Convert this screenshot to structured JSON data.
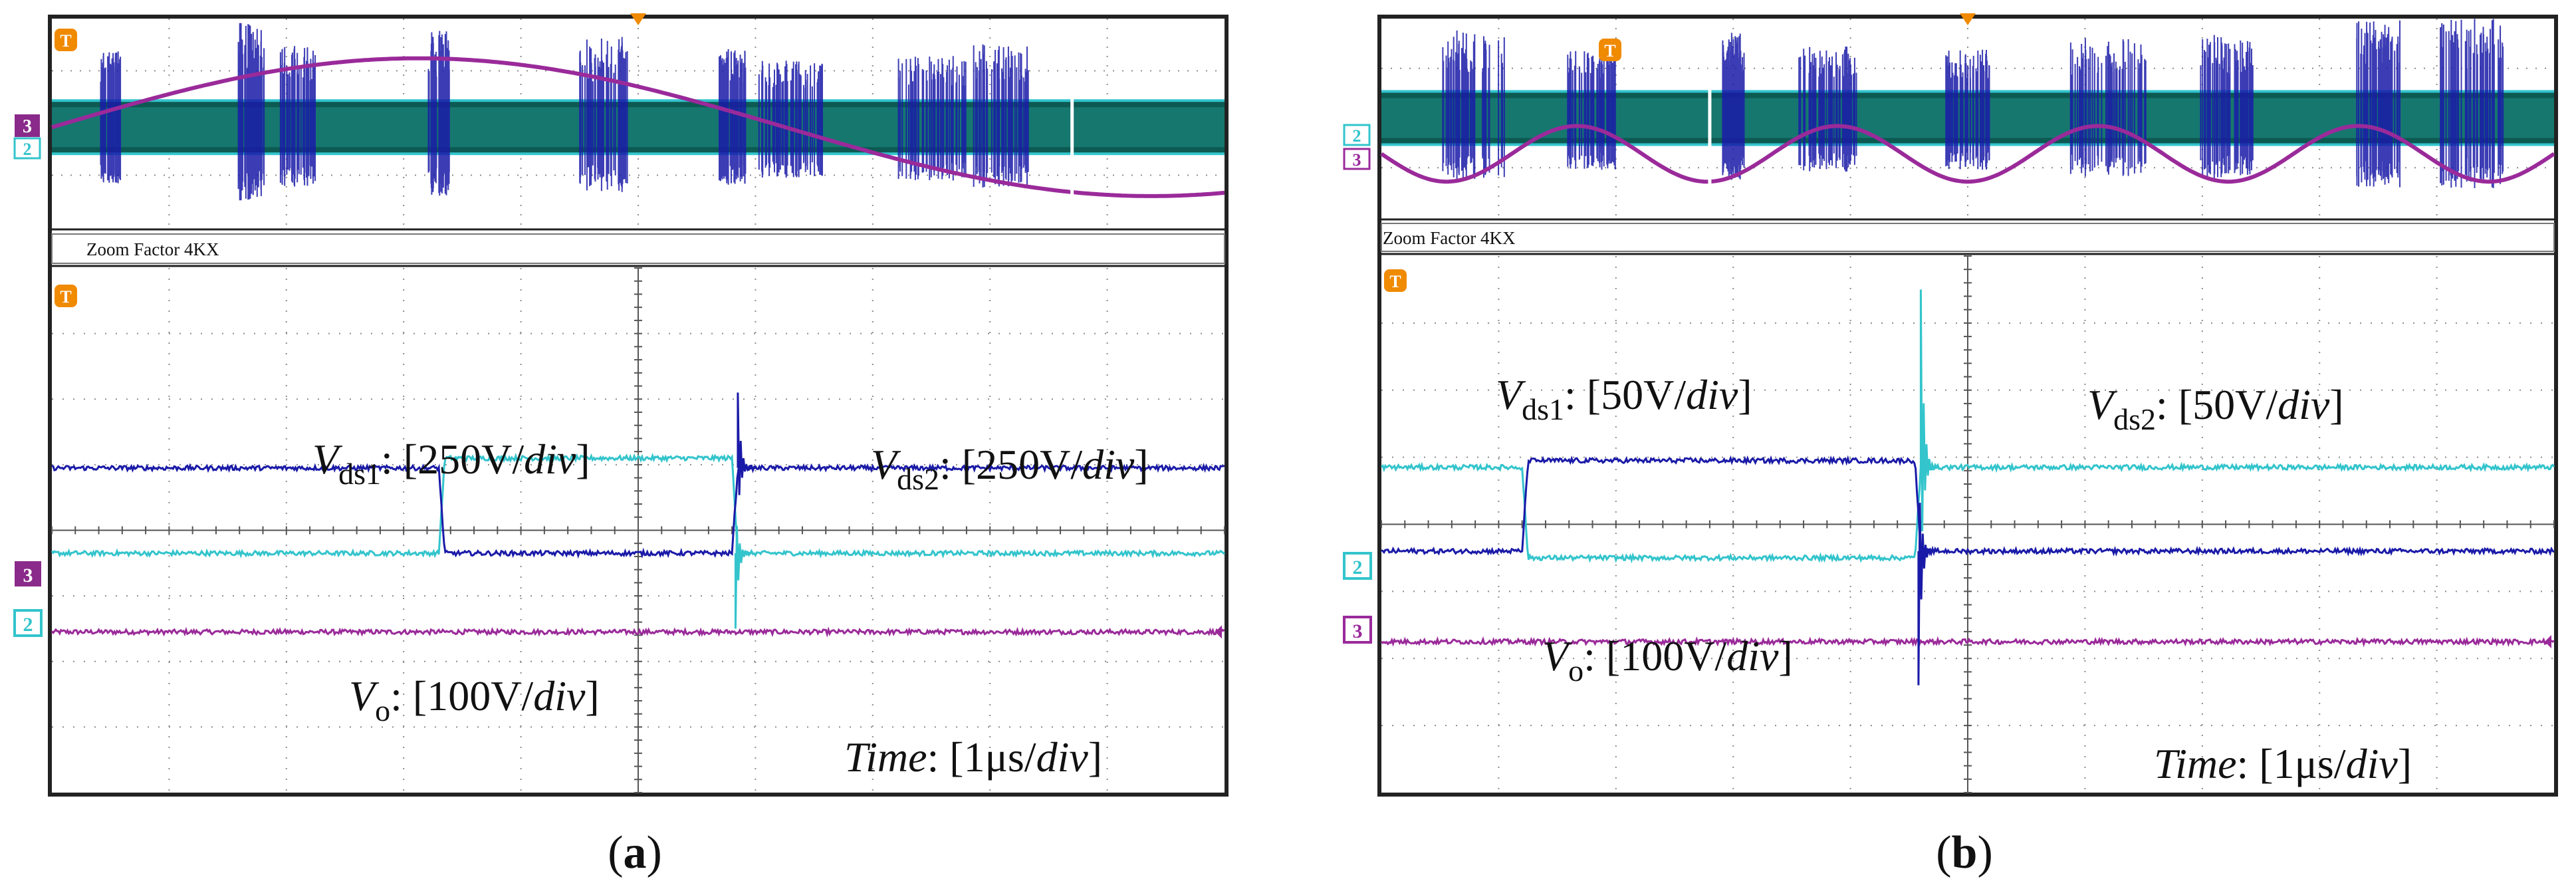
{
  "colors": {
    "ch1": "#1a1aa8",
    "ch2": "#33c4cc",
    "ch3": "#9a2a9a",
    "trigger": "#f08a00",
    "grid": "#8c8c8c",
    "frame": "#222222",
    "ov_band": "#0c5a52"
  },
  "chart_data": [
    {
      "type": "line",
      "panel": "a",
      "caption": "a",
      "zoom_label": "Zoom Factor  4KX",
      "trigger_marker": "T",
      "channel_markers": [
        "3",
        "2"
      ],
      "labels": {
        "vds1": {
          "sym": "V",
          "sub": "ds1",
          "scale": "250V",
          "unit": "div"
        },
        "vds2": {
          "sym": "V",
          "sub": "ds2",
          "scale": "250V",
          "unit": "div"
        },
        "vo": {
          "sym": "V",
          "sub": "o",
          "scale": "100V",
          "unit": "div"
        },
        "time": {
          "name": "Time",
          "scale": "1μs",
          "unit": "div"
        }
      },
      "xlim": [
        0,
        10
      ],
      "ylim": [
        -4,
        4
      ],
      "x_divisions": 10,
      "y_divisions": 8,
      "series": [
        {
          "name": "Vds1",
          "channel": 1,
          "levels": [
            [
              0,
              0.95
            ],
            [
              3.3,
              0.95
            ],
            [
              3.35,
              -0.35
            ],
            [
              5.8,
              -0.35
            ],
            [
              5.85,
              0.95
            ],
            [
              10,
              0.95
            ]
          ],
          "spikes": [
            [
              5.85,
              2.1
            ]
          ]
        },
        {
          "name": "Vds2",
          "channel": 2,
          "levels": [
            [
              0,
              -0.35
            ],
            [
              3.3,
              -0.35
            ],
            [
              3.35,
              1.1
            ],
            [
              5.8,
              1.1
            ],
            [
              5.85,
              -0.35
            ],
            [
              10,
              -0.35
            ]
          ],
          "spikes": [
            [
              5.83,
              -1.5
            ]
          ]
        },
        {
          "name": "Vo",
          "channel": 3,
          "levels": [
            [
              0,
              -1.55
            ],
            [
              10,
              -1.55
            ]
          ],
          "spikes": []
        }
      ],
      "overview": {
        "sine_cycles": 0.8,
        "sine_phase": 3.14,
        "bursts": [
          0.05,
          0.17,
          0.21,
          0.33,
          0.47,
          0.58,
          0.63,
          0.75,
          0.81
        ],
        "cursor_at": 0.87,
        "trigger_at": 0.5
      }
    },
    {
      "type": "line",
      "panel": "b",
      "caption": "b",
      "zoom_label": "Zoom Factor  4KX",
      "trigger_marker": "T",
      "channel_markers": [
        "2",
        "3"
      ],
      "labels": {
        "vds1": {
          "sym": "V",
          "sub": "ds1",
          "scale": "50V",
          "unit": "div"
        },
        "vds2": {
          "sym": "V",
          "sub": "ds2",
          "scale": "50V",
          "unit": "div"
        },
        "vo": {
          "sym": "V",
          "sub": "o",
          "scale": "100V",
          "unit": "div"
        },
        "time": {
          "name": "Time",
          "scale": "1μs",
          "unit": "div"
        }
      },
      "xlim": [
        0,
        10
      ],
      "ylim": [
        -4,
        4
      ],
      "x_divisions": 10,
      "y_divisions": 8,
      "series": [
        {
          "name": "Vds1",
          "channel": 1,
          "levels": [
            [
              0,
              -0.4
            ],
            [
              1.2,
              -0.4
            ],
            [
              1.25,
              0.95
            ],
            [
              4.55,
              0.95
            ],
            [
              4.6,
              -0.4
            ],
            [
              10,
              -0.4
            ]
          ],
          "spikes": [
            [
              4.58,
              -2.4
            ]
          ]
        },
        {
          "name": "Vds2",
          "channel": 2,
          "levels": [
            [
              0,
              0.85
            ],
            [
              1.2,
              0.85
            ],
            [
              1.25,
              -0.5
            ],
            [
              4.55,
              -0.5
            ],
            [
              4.6,
              0.85
            ],
            [
              10,
              0.85
            ]
          ],
          "spikes": [
            [
              4.6,
              3.5
            ]
          ]
        },
        {
          "name": "Vo",
          "channel": 3,
          "levels": [
            [
              0,
              -1.75
            ],
            [
              10,
              -1.75
            ]
          ],
          "spikes": []
        }
      ],
      "overview": {
        "sine_cycles": 4.5,
        "sine_phase": 0,
        "bursts": [
          0.08,
          0.18,
          0.3,
          0.38,
          0.5,
          0.62,
          0.72,
          0.85,
          0.93
        ],
        "cursor_at": 0.28,
        "trigger_at": 0.5
      }
    }
  ]
}
